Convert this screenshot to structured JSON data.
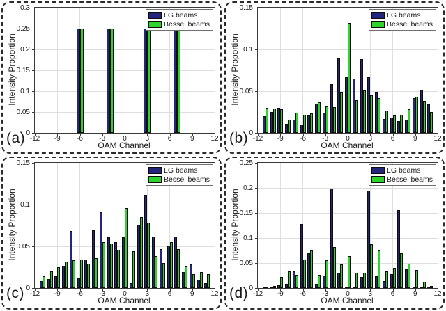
{
  "colors": {
    "lg": "#26257e",
    "bessel": "#2ed32e",
    "bar_edge": "#0d0d0d",
    "grid": "#dedede",
    "axis": "#3a3a3a"
  },
  "legend": {
    "position": "top-right",
    "items": [
      {
        "label": "LG beams",
        "color": "#26257e"
      },
      {
        "label": "Bessel beams",
        "color": "#2ed32e"
      }
    ]
  },
  "axes": {
    "xlabel": "OAM Channel",
    "ylabel": "Intensity Proportion",
    "xlim": [
      -12,
      12
    ],
    "xticks": [
      -12,
      -9,
      -6,
      -3,
      0,
      3,
      6,
      9,
      12
    ],
    "xtick_labels": [
      "-12",
      "-9",
      "-6",
      "-3",
      "0",
      "3",
      "6",
      "9",
      "12"
    ],
    "grid": true
  },
  "chart_data": [
    {
      "panel_label": "(a)",
      "type": "bar",
      "title": "",
      "xlabel": "OAM Channel",
      "ylabel": "Intensity Proportion",
      "ylim": [
        0,
        0.3
      ],
      "ytick_values": [
        0,
        0.05,
        0.1,
        0.15,
        0.2,
        0.25,
        0.3
      ],
      "ytick_labels": [
        "0",
        "0.05",
        "0.1",
        "0.15",
        "0.2",
        "0.25",
        "0.3"
      ],
      "categories": [
        -6,
        -2,
        3,
        7
      ],
      "series": [
        {
          "name": "LG beams",
          "values": [
            0.25,
            0.25,
            0.25,
            0.25
          ]
        },
        {
          "name": "Bessel beams",
          "values": [
            0.25,
            0.25,
            0.25,
            0.25
          ]
        }
      ]
    },
    {
      "panel_label": "(b)",
      "type": "bar",
      "title": "",
      "xlabel": "OAM Channel",
      "ylabel": "Intensity Proportion",
      "ylim": [
        0,
        0.15
      ],
      "ytick_values": [
        0,
        0.05,
        0.1,
        0.15
      ],
      "ytick_labels": [
        "0",
        "0.05",
        "0.1",
        "0.15"
      ],
      "categories": [
        -11,
        -10,
        -9,
        -8,
        -7,
        -6,
        -5,
        -4,
        -3,
        -2,
        -1,
        0,
        1,
        2,
        3,
        4,
        5,
        6,
        7,
        8,
        9,
        10,
        11
      ],
      "series": [
        {
          "name": "LG beams",
          "values": [
            0.02,
            0.025,
            0.03,
            0.011,
            0.016,
            0.01,
            0.021,
            0.035,
            0.024,
            0.058,
            0.089,
            0.067,
            0.065,
            0.088,
            0.067,
            0.049,
            0.017,
            0.018,
            0.014,
            0.016,
            0.042,
            0.052,
            0.034
          ]
        },
        {
          "name": "Bessel beams",
          "values": [
            0.03,
            0.029,
            0.028,
            0.016,
            0.024,
            0.022,
            0.023,
            0.037,
            0.032,
            0.031,
            0.049,
            0.132,
            0.039,
            0.051,
            0.045,
            0.042,
            0.027,
            0.021,
            0.022,
            0.028,
            0.043,
            0.038,
            0.025
          ]
        }
      ]
    },
    {
      "panel_label": "(c)",
      "type": "bar",
      "title": "",
      "xlabel": "OAM Channel",
      "ylabel": "Intensity Proportion",
      "ylim": [
        0,
        0.15
      ],
      "ytick_values": [
        0,
        0.05,
        0.1,
        0.15
      ],
      "ytick_labels": [
        "0",
        "0.05",
        "0.1",
        "0.15"
      ],
      "categories": [
        -11,
        -10,
        -9,
        -8,
        -7,
        -6,
        -5,
        -4,
        -3,
        -2,
        -1,
        0,
        1,
        2,
        3,
        4,
        5,
        6,
        7,
        8,
        9,
        10,
        11
      ],
      "series": [
        {
          "name": "LG beams",
          "values": [
            0.008,
            0.011,
            0.014,
            0.027,
            0.068,
            0.012,
            0.034,
            0.069,
            0.091,
            0.061,
            0.055,
            0.061,
            0.006,
            0.076,
            0.112,
            0.062,
            0.047,
            0.051,
            0.062,
            0.019,
            0.028,
            0.01,
            0.006
          ]
        },
        {
          "name": "Bessel beams",
          "values": [
            0.014,
            0.02,
            0.025,
            0.032,
            0.033,
            0.034,
            0.029,
            0.036,
            0.055,
            0.053,
            0.046,
            0.096,
            0.044,
            0.085,
            0.078,
            0.038,
            0.03,
            0.055,
            0.047,
            0.026,
            0.017,
            0.019,
            0.017
          ]
        }
      ]
    },
    {
      "panel_label": "(d)",
      "type": "bar",
      "title": "",
      "xlabel": "OAM Channel",
      "ylabel": "Intensity Proportion",
      "ylim": [
        0,
        0.25
      ],
      "ytick_values": [
        0,
        0.05,
        0.1,
        0.15,
        0.2,
        0.25
      ],
      "ytick_labels": [
        "0",
        "0.05",
        "0.1",
        "0.15",
        "0.2",
        "0.25"
      ],
      "categories": [
        -11,
        -10,
        -9,
        -8,
        -7,
        -6,
        -5,
        -4,
        -3,
        -2,
        -1,
        0,
        1,
        2,
        3,
        4,
        5,
        6,
        7,
        8,
        9,
        10,
        11
      ],
      "series": [
        {
          "name": "LG beams",
          "values": [
            0.001,
            0.002,
            0.005,
            0.009,
            0.033,
            0.128,
            0.069,
            0.009,
            0.025,
            0.199,
            0.03,
            0.003,
            0.003,
            0.022,
            0.195,
            0.024,
            0.014,
            0.028,
            0.155,
            0.037,
            0.002,
            0.001,
            0.001
          ]
        },
        {
          "name": "Bessel beams",
          "values": [
            0.002,
            0.004,
            0.022,
            0.033,
            0.026,
            0.057,
            0.075,
            0.026,
            0.055,
            0.082,
            0.047,
            0.064,
            0.03,
            0.03,
            0.088,
            0.075,
            0.033,
            0.041,
            0.07,
            0.048,
            0.036,
            0.012,
            0.004
          ]
        }
      ]
    }
  ]
}
